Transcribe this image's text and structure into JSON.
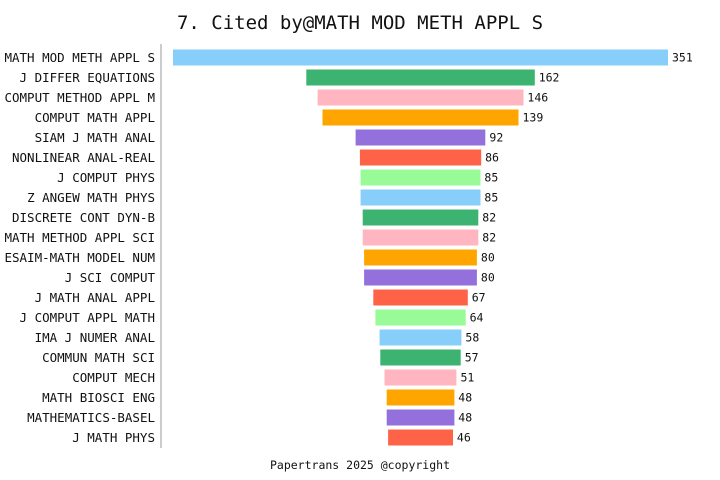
{
  "chart_data": {
    "type": "bar",
    "orientation": "horizontal",
    "layout": "centered-funnel",
    "title": "7. Cited by@MATH MOD METH APPL S",
    "footer": "Papertrans 2025 @copyright",
    "categories": [
      "MATH MOD METH APPL S",
      "J DIFFER EQUATIONS",
      "COMPUT METHOD APPL M",
      "COMPUT MATH APPL",
      "SIAM J MATH ANAL",
      "NONLINEAR ANAL-REAL",
      "J COMPUT PHYS",
      "Z ANGEW MATH PHYS",
      "DISCRETE CONT DYN-B",
      "MATH METHOD APPL SCI",
      "ESAIM-MATH MODEL NUM",
      "J SCI COMPUT",
      "J MATH ANAL APPL",
      "J COMPUT APPL MATH",
      "IMA J NUMER ANAL",
      "COMMUN MATH SCI",
      "COMPUT MECH",
      "MATH BIOSCI ENG",
      "MATHEMATICS-BASEL",
      "J MATH PHYS"
    ],
    "values": [
      351,
      162,
      146,
      139,
      92,
      86,
      85,
      85,
      82,
      82,
      80,
      80,
      67,
      64,
      58,
      57,
      51,
      48,
      48,
      46
    ],
    "colors": [
      "#87CEFA",
      "#3CB371",
      "#FFB6C1",
      "#FFA500",
      "#9370DB",
      "#FF6347",
      "#98FB98"
    ],
    "xlim": [
      0,
      351
    ],
    "grid": false,
    "legend": "none"
  }
}
